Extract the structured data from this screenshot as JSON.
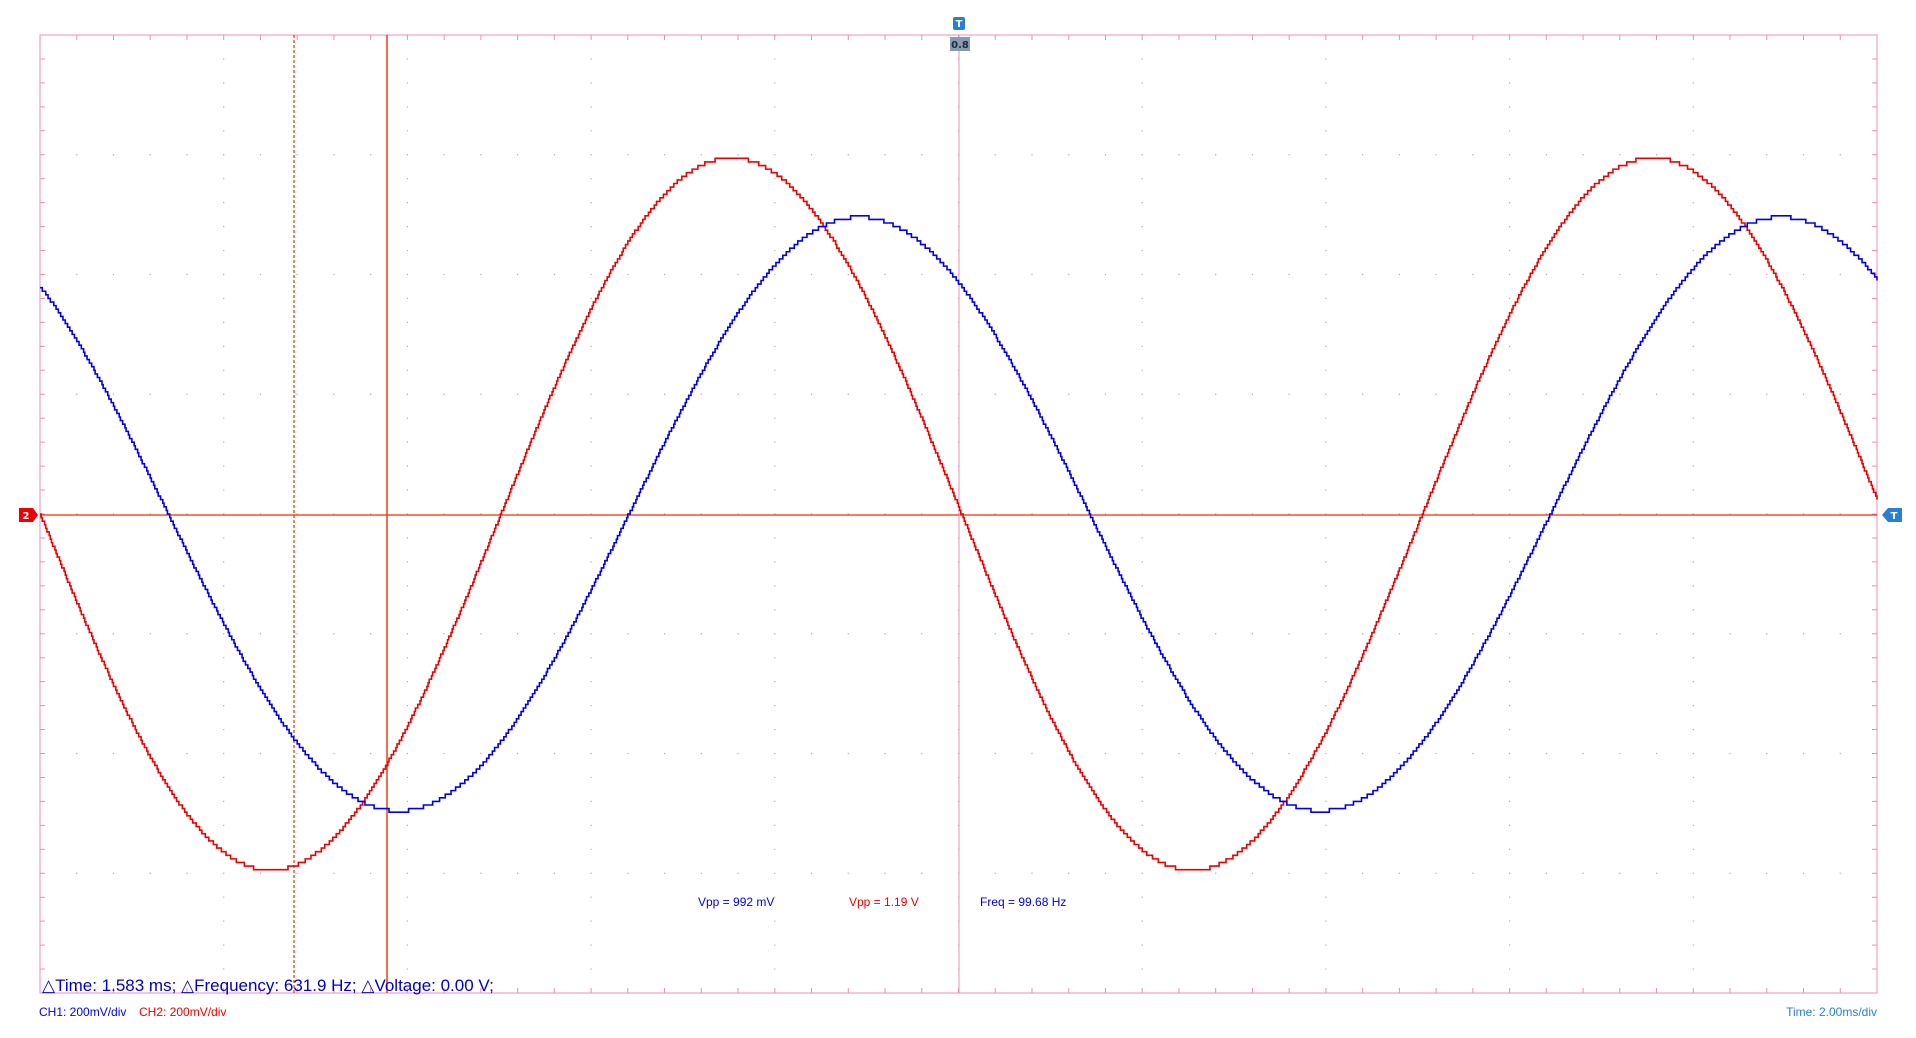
{
  "chart_data": {
    "type": "line",
    "grid": true,
    "x_divisions": 10,
    "y_divisions": 8,
    "series": [
      {
        "name": "CH1",
        "color": "#0000ee",
        "vpp": 0.992,
        "frequency_hz": 99.68,
        "phase_deg": 130
      },
      {
        "name": "CH2",
        "color": "#ee0000",
        "vpp": 1.19,
        "frequency_hz": 99.68,
        "phase_deg": 180
      }
    ],
    "measurements": [
      {
        "text": "Vpp = 992 mV",
        "color": "#0000ee"
      },
      {
        "text": "Vpp = 1.19 V",
        "color": "#ee0000"
      },
      {
        "text": "Freq = 99.68 Hz",
        "color": "#0000ee"
      }
    ],
    "cursor_readout": "△Time: 1.583 ms; △Frequency: 631.9 Hz; △Voltage: 0.00 V;",
    "channel_scales": [
      {
        "text": "CH1: 200mV/div",
        "color": "#0000ee"
      },
      {
        "text": "CH2: 200mV/div",
        "color": "#ee0000"
      }
    ],
    "timebase": "Time: 2.00ms/div",
    "trigger_label": "T",
    "trigger_level_label": "T",
    "channel2_marker_label": "2",
    "position_readout": "0.8",
    "colors": {
      "grid": "#f08cb4",
      "ch1": "#0000ee",
      "ch2": "#ee0000",
      "cursor": "#ee3300",
      "trigger": "#2a7fd4"
    }
  }
}
